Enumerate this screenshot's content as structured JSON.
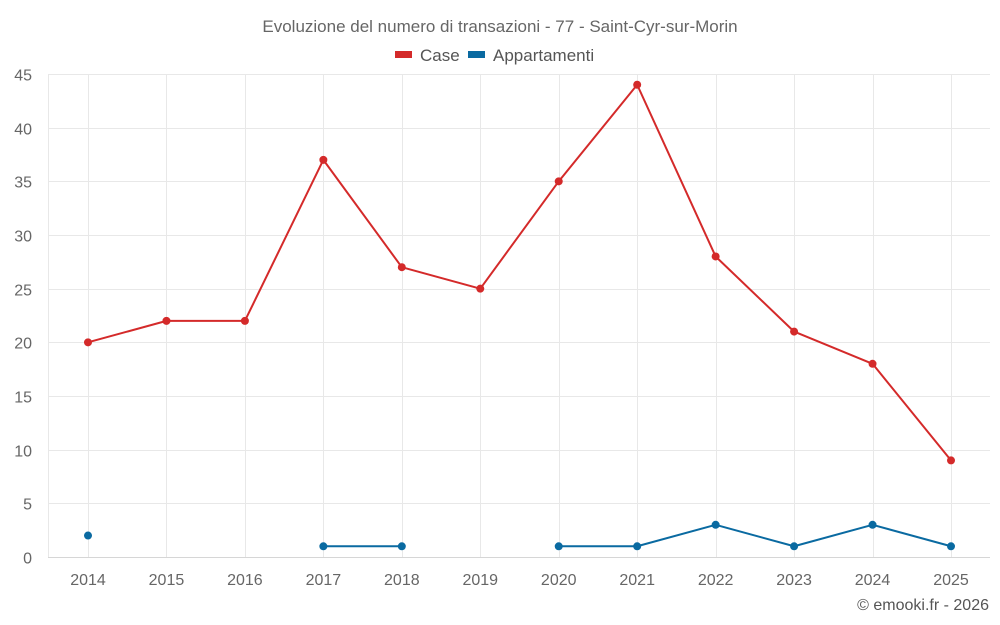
{
  "chart_data": {
    "type": "line",
    "title": "Evoluzione del numero di transazioni - 77 - Saint-Cyr-sur-Morin",
    "xlabel": "",
    "ylabel": "",
    "categories": [
      "2014",
      "2015",
      "2016",
      "2017",
      "2018",
      "2019",
      "2020",
      "2021",
      "2022",
      "2023",
      "2024",
      "2025"
    ],
    "series": [
      {
        "name": "Case",
        "color": "#d42a2a",
        "values": [
          20,
          22,
          22,
          37,
          27,
          25,
          35,
          44,
          28,
          21,
          18,
          9
        ]
      },
      {
        "name": "Appartamenti",
        "color": "#0a6aa1",
        "values": [
          2,
          null,
          null,
          1,
          1,
          null,
          1,
          1,
          3,
          1,
          3,
          1
        ]
      }
    ],
    "ylim": [
      0,
      45
    ],
    "yticks": [
      0,
      5,
      10,
      15,
      20,
      25,
      30,
      35,
      40,
      45
    ],
    "grid": true,
    "legend_position": "top"
  },
  "credit": "© emooki.fr - 2026"
}
